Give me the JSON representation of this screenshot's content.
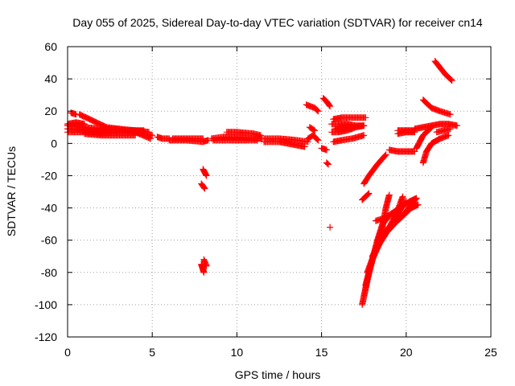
{
  "chart_data": {
    "type": "scatter",
    "title": "Day 055 of 2025, Sidereal Day-to-day VTEC variation (SDTVAR) for receiver cn14",
    "xlabel": "GPS time / hours",
    "ylabel": "SDTVAR / TECUs",
    "xlim": [
      0,
      25
    ],
    "ylim": [
      -120,
      60
    ],
    "xticks": [
      0,
      5,
      10,
      15,
      20,
      25
    ],
    "yticks": [
      -120,
      -100,
      -80,
      -60,
      -40,
      -20,
      0,
      20,
      40,
      60
    ],
    "grid": true,
    "marker": "+",
    "color": "#ff0000",
    "segments": [
      [
        [
          0.0,
          7
        ],
        [
          1.0,
          7
        ],
        [
          2.0,
          6
        ],
        [
          3.0,
          7
        ],
        [
          4.0,
          7
        ],
        [
          5.0,
          5
        ]
      ],
      [
        [
          0.0,
          11
        ],
        [
          1.0,
          10
        ],
        [
          2.0,
          9
        ],
        [
          3.0,
          9
        ],
        [
          4.0,
          8
        ],
        [
          4.8,
          7
        ]
      ],
      [
        [
          0.0,
          9
        ],
        [
          1.5,
          8
        ],
        [
          3.0,
          8
        ],
        [
          4.5,
          8
        ]
      ],
      [
        [
          0.0,
          12
        ],
        [
          0.5,
          13
        ],
        [
          1.0,
          12
        ]
      ],
      [
        [
          0.7,
          18
        ],
        [
          1.5,
          14
        ],
        [
          2.3,
          10
        ],
        [
          3.0,
          9
        ],
        [
          4.0,
          7
        ],
        [
          4.9,
          3
        ]
      ],
      [
        [
          1.0,
          6
        ],
        [
          2.0,
          5
        ],
        [
          3.0,
          5
        ],
        [
          4.0,
          5
        ]
      ],
      [
        [
          0.2,
          19
        ],
        [
          0.5,
          18
        ]
      ],
      [
        [
          5.3,
          4
        ],
        [
          5.6,
          3
        ],
        [
          6.0,
          3
        ]
      ],
      [
        [
          6.0,
          2
        ],
        [
          7.0,
          2
        ],
        [
          8.0,
          1
        ],
        [
          8.3,
          2
        ]
      ],
      [
        [
          6.2,
          3
        ],
        [
          7.2,
          3
        ],
        [
          8.0,
          3
        ]
      ],
      [
        [
          8.0,
          -16
        ],
        [
          8.2,
          -20
        ]
      ],
      [
        [
          7.9,
          -25
        ],
        [
          8.1,
          -28
        ]
      ],
      [
        [
          7.9,
          -75
        ],
        [
          8.05,
          -80
        ]
      ],
      [
        [
          8.05,
          -72
        ],
        [
          8.2,
          -76
        ]
      ],
      [
        [
          8.5,
          3
        ],
        [
          9.2,
          4
        ],
        [
          10.0,
          4
        ],
        [
          11.0,
          3
        ],
        [
          11.5,
          3
        ]
      ],
      [
        [
          8.6,
          2
        ],
        [
          9.5,
          2
        ],
        [
          10.5,
          2
        ],
        [
          11.2,
          2
        ]
      ],
      [
        [
          9.4,
          7
        ],
        [
          10.0,
          7
        ],
        [
          11.0,
          6
        ],
        [
          11.4,
          5
        ]
      ],
      [
        [
          11.6,
          1
        ],
        [
          12.5,
          1
        ],
        [
          13.0,
          0
        ],
        [
          13.5,
          -1
        ],
        [
          14.0,
          -2
        ]
      ],
      [
        [
          11.6,
          3
        ],
        [
          12.5,
          3
        ],
        [
          13.5,
          2
        ],
        [
          14.2,
          1
        ]
      ],
      [
        [
          14.2,
          3
        ],
        [
          14.5,
          5
        ],
        [
          14.8,
          2
        ]
      ],
      [
        [
          14.3,
          10
        ],
        [
          14.6,
          8
        ]
      ],
      [
        [
          14.1,
          24
        ],
        [
          14.6,
          22
        ],
        [
          14.8,
          20
        ]
      ],
      [
        [
          15.0,
          -3
        ],
        [
          15.3,
          -4
        ]
      ],
      [
        [
          15.1,
          28
        ],
        [
          15.3,
          26
        ],
        [
          15.5,
          23
        ]
      ],
      [
        [
          15.3,
          -12
        ],
        [
          15.4,
          -13
        ]
      ],
      [
        [
          15.5,
          -52
        ]
      ],
      [
        [
          15.6,
          12
        ],
        [
          16.0,
          12
        ],
        [
          16.5,
          12
        ],
        [
          17.0,
          11
        ],
        [
          17.5,
          11
        ]
      ],
      [
        [
          15.6,
          7
        ],
        [
          16.0,
          7
        ],
        [
          16.5,
          8
        ],
        [
          17.0,
          10
        ],
        [
          17.5,
          11
        ]
      ],
      [
        [
          15.7,
          15
        ],
        [
          16.2,
          16
        ],
        [
          17.0,
          16
        ],
        [
          17.6,
          16
        ]
      ],
      [
        [
          15.7,
          1
        ],
        [
          16.2,
          2
        ],
        [
          16.8,
          3
        ],
        [
          17.5,
          5
        ]
      ],
      [
        [
          15.8,
          9
        ],
        [
          16.3,
          10
        ],
        [
          16.8,
          9
        ]
      ],
      [
        [
          17.5,
          -25
        ],
        [
          17.8,
          -20
        ],
        [
          18.3,
          -13
        ],
        [
          18.8,
          -7
        ]
      ],
      [
        [
          17.4,
          -35
        ],
        [
          17.8,
          -31
        ]
      ],
      [
        [
          19.0,
          -4
        ],
        [
          19.5,
          -5
        ],
        [
          20.0,
          -5
        ],
        [
          20.5,
          -5
        ]
      ],
      [
        [
          17.4,
          -100
        ],
        [
          17.7,
          -85
        ],
        [
          18.0,
          -72
        ],
        [
          18.3,
          -60
        ],
        [
          18.6,
          -50
        ],
        [
          19.0,
          -45
        ]
      ],
      [
        [
          17.5,
          -95
        ],
        [
          17.8,
          -80
        ],
        [
          18.2,
          -65
        ],
        [
          18.6,
          -52
        ],
        [
          18.8,
          -40
        ],
        [
          19.0,
          -32
        ]
      ],
      [
        [
          17.6,
          -88
        ],
        [
          18.0,
          -72
        ],
        [
          18.6,
          -58
        ],
        [
          19.2,
          -50
        ],
        [
          19.6,
          -42
        ],
        [
          20.0,
          -36
        ]
      ],
      [
        [
          17.7,
          -80
        ],
        [
          18.2,
          -66
        ],
        [
          18.8,
          -56
        ],
        [
          19.4,
          -44
        ],
        [
          19.8,
          -33
        ]
      ],
      [
        [
          18.0,
          -70
        ],
        [
          18.6,
          -58
        ],
        [
          19.3,
          -50
        ],
        [
          20.0,
          -42
        ],
        [
          20.6,
          -34
        ]
      ],
      [
        [
          18.3,
          -60
        ],
        [
          19.0,
          -52
        ],
        [
          19.6,
          -47
        ],
        [
          20.3,
          -40
        ],
        [
          20.7,
          -38
        ]
      ],
      [
        [
          18.2,
          -48
        ],
        [
          18.8,
          -46
        ],
        [
          19.6,
          -40
        ],
        [
          20.2,
          -36
        ],
        [
          20.6,
          -34
        ]
      ],
      [
        [
          19.5,
          8
        ],
        [
          20.0,
          8
        ],
        [
          20.5,
          8
        ]
      ],
      [
        [
          19.5,
          6
        ],
        [
          20.0,
          7
        ],
        [
          20.5,
          7
        ]
      ],
      [
        [
          20.5,
          9
        ],
        [
          21.0,
          10
        ],
        [
          21.5,
          11
        ],
        [
          22.0,
          12
        ],
        [
          22.5,
          12
        ],
        [
          23.0,
          11
        ]
      ],
      [
        [
          20.6,
          -3
        ],
        [
          21.0,
          5
        ],
        [
          21.5,
          10
        ]
      ],
      [
        [
          21.0,
          -12
        ],
        [
          21.2,
          -5
        ],
        [
          21.5,
          0
        ],
        [
          22.0,
          3
        ],
        [
          22.5,
          5
        ]
      ],
      [
        [
          21.0,
          27
        ],
        [
          21.5,
          22
        ],
        [
          22.0,
          20
        ],
        [
          22.6,
          18
        ]
      ],
      [
        [
          21.7,
          51
        ],
        [
          22.0,
          47
        ],
        [
          22.3,
          43
        ],
        [
          22.7,
          39
        ]
      ],
      [
        [
          21.8,
          7
        ],
        [
          22.2,
          8
        ],
        [
          22.6,
          9
        ]
      ]
    ]
  }
}
